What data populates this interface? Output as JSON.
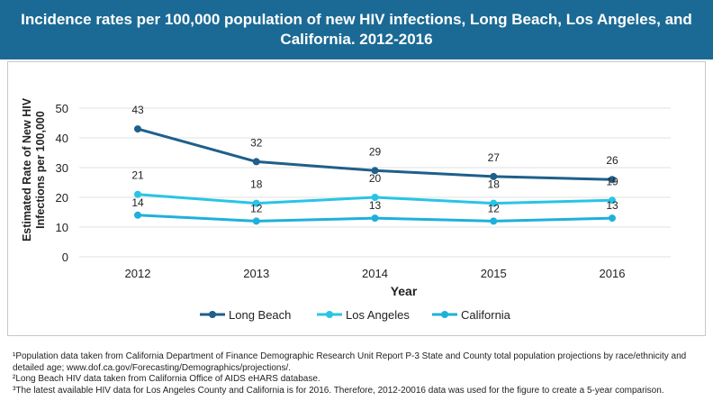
{
  "header": {
    "title": "Incidence rates per 100,000 population of new HIV infections, Long Beach, Los Angeles, and California. 2012-2016"
  },
  "chart_data": {
    "type": "line",
    "title": "Incidence rates per 100,000 population of new HIV infections, Long Beach, Los Angeles, and California. 2012-2016",
    "xlabel": "Year",
    "ylabel": "Estimated Rate of New HIV Infections per 100,000",
    "categories": [
      "2012",
      "2013",
      "2014",
      "2015",
      "2016"
    ],
    "ylim": [
      0,
      50
    ],
    "yticks": [
      0,
      10,
      20,
      30,
      40,
      50
    ],
    "grid": true,
    "legend_position": "bottom",
    "series": [
      {
        "name": "Long Beach",
        "values": [
          43,
          32,
          29,
          27,
          26
        ],
        "color": "#1f5f8b",
        "labels": [
          "43",
          "32",
          "29",
          "27",
          "26"
        ]
      },
      {
        "name": "Los Angeles",
        "values": [
          21,
          18,
          20,
          18,
          19
        ],
        "color": "#29c4e6",
        "labels": [
          "21",
          "18",
          "20",
          "18",
          "19"
        ]
      },
      {
        "name": "California",
        "values": [
          14,
          12,
          13,
          12,
          13
        ],
        "color": "#1fb0dc",
        "labels": [
          "14",
          "12",
          "13",
          "12",
          "13"
        ]
      }
    ]
  },
  "footnotes": [
    "¹Population data taken from California Department of Finance Demographic Research Unit Report P-3 State and County total population projections by race/ethnicity and detailed age; www.dof.ca.gov/Forecasting/Demographics/projections/.",
    "²Long Beach HIV data taken from California Office of AIDS eHARS database.",
    "³The latest available HIV data for Los Angeles County and California is for 2016. Therefore, 2012-20016 data was used for the figure to create a 5-year comparison."
  ]
}
